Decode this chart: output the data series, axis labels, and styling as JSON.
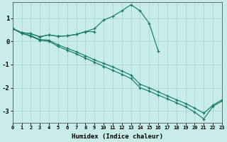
{
  "xlabel": "Humidex (Indice chaleur)",
  "bg_color": "#c8ede8",
  "grid_color": "#a8d8d0",
  "line_color": "#1a7a6e",
  "xlim": [
    0,
    23
  ],
  "ylim": [
    -3.5,
    1.7
  ],
  "yticks": [
    -3,
    -2,
    -1,
    0,
    1
  ],
  "x_peak": [
    0,
    1,
    2,
    3,
    4,
    5,
    6,
    7,
    8,
    9,
    10,
    11,
    12,
    13,
    14,
    15,
    16
  ],
  "y_peak": [
    0.55,
    0.38,
    0.33,
    0.2,
    0.28,
    0.22,
    0.24,
    0.3,
    0.42,
    0.55,
    0.92,
    1.08,
    1.32,
    1.58,
    1.32,
    0.78,
    -0.42
  ],
  "x_short": [
    0,
    1,
    2,
    3,
    4,
    5,
    6,
    7,
    8,
    9
  ],
  "y_short": [
    0.55,
    0.38,
    0.33,
    0.2,
    0.28,
    0.22,
    0.24,
    0.3,
    0.42,
    0.42
  ],
  "x_diag1": [
    0,
    1,
    2,
    3,
    4,
    5,
    6,
    7,
    8,
    9,
    10,
    11,
    12,
    13,
    14,
    15,
    16,
    17,
    18,
    19,
    20,
    21,
    22,
    23
  ],
  "y_diag1": [
    0.55,
    0.35,
    0.25,
    0.08,
    0.05,
    -0.15,
    -0.3,
    -0.45,
    -0.62,
    -0.8,
    -0.95,
    -1.1,
    -1.28,
    -1.45,
    -1.85,
    -2.0,
    -2.18,
    -2.35,
    -2.52,
    -2.68,
    -2.88,
    -3.1,
    -2.75,
    -2.52
  ],
  "x_diag2": [
    0,
    1,
    2,
    3,
    4,
    5,
    6,
    7,
    8,
    9,
    10,
    11,
    12,
    13,
    14,
    15,
    16,
    17,
    18,
    19,
    20,
    21,
    22,
    23
  ],
  "y_diag2": [
    0.55,
    0.35,
    0.22,
    0.05,
    0.0,
    -0.22,
    -0.38,
    -0.54,
    -0.72,
    -0.9,
    -1.08,
    -1.25,
    -1.42,
    -1.6,
    -2.0,
    -2.15,
    -2.32,
    -2.48,
    -2.65,
    -2.82,
    -3.05,
    -3.35,
    -2.8,
    -2.58
  ]
}
